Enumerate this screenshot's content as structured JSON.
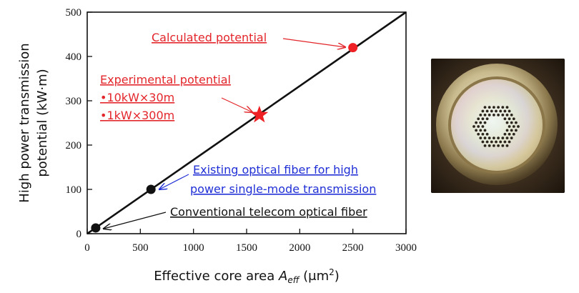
{
  "chart_data": {
    "type": "scatter",
    "xlabel_main": "Effective core area ",
    "xlabel_var": "A",
    "xlabel_sub": "eff",
    "xlabel_unit": " (μm",
    "xlabel_sup": "2",
    "xlabel_close": ")",
    "ylabel_line1": "High power transmission",
    "ylabel_line2": "potential (kW·m)",
    "xlim": [
      0,
      3000
    ],
    "ylim": [
      0,
      500
    ],
    "xticks": [
      0,
      500,
      1000,
      1500,
      2000,
      2500,
      3000
    ],
    "yticks": [
      0,
      100,
      200,
      300,
      400,
      500
    ],
    "fit_line": {
      "x": [
        0,
        3000
      ],
      "y": [
        0,
        500
      ]
    },
    "points": [
      {
        "x": 80,
        "y": 13,
        "marker": "circle",
        "color": "#111111"
      },
      {
        "x": 600,
        "y": 100,
        "marker": "circle",
        "color": "#111111"
      },
      {
        "x": 1620,
        "y": 268,
        "marker": "star",
        "color": "#ee2024"
      },
      {
        "x": 2500,
        "y": 420,
        "marker": "circle",
        "color": "#ee2024"
      }
    ],
    "annotations": {
      "calculated": "Calculated potential",
      "experimental_title": "Experimental potential",
      "experimental_item1": "•10kW×30m",
      "experimental_item2": "•1kW×300m",
      "existing_line1": "Existing optical fiber for high",
      "existing_line2": "power single-mode transmission",
      "conventional": "Conventional telecom optical fiber"
    }
  },
  "colors": {
    "red": "#e3262b",
    "blue": "#2130d6",
    "black": "#111111"
  }
}
